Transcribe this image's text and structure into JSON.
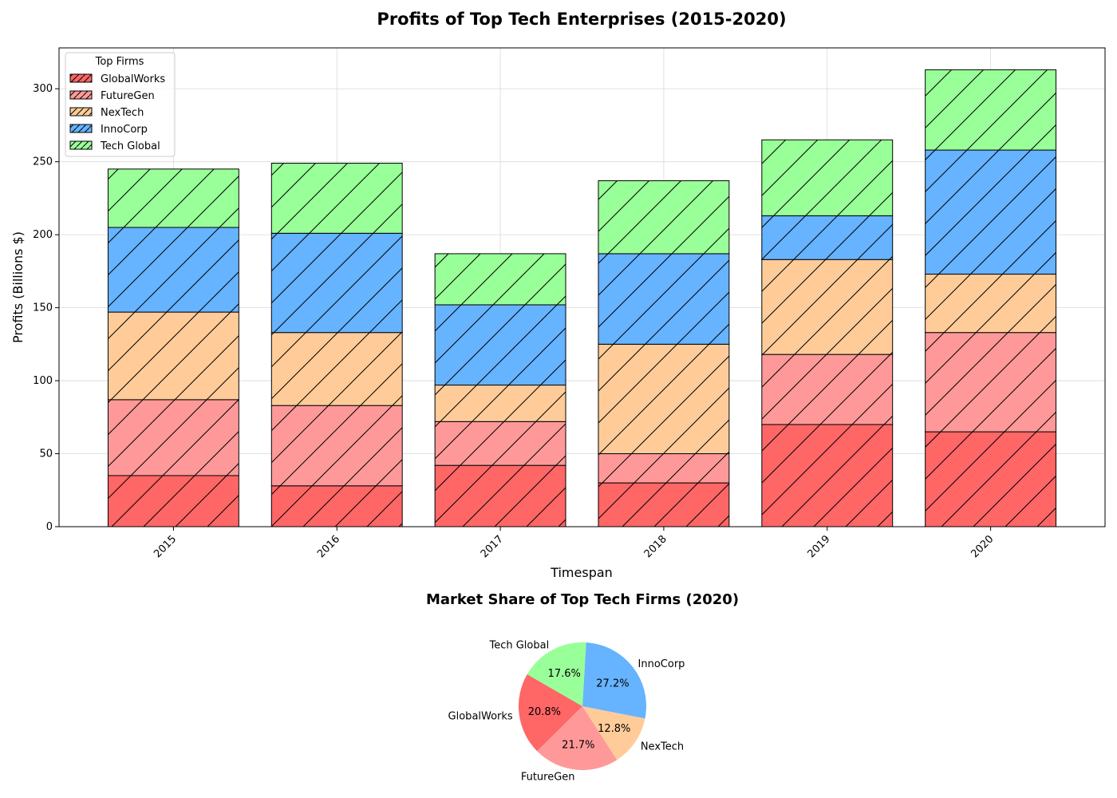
{
  "chart_data": [
    {
      "type": "bar",
      "stacked": true,
      "title": "Profits of Top Tech Enterprises (2015-2020)",
      "xlabel": "Timespan",
      "ylabel": "Profits (Billions $)",
      "categories": [
        "2015",
        "2016",
        "2017",
        "2018",
        "2019",
        "2020"
      ],
      "ylim": [
        0,
        328
      ],
      "yticks": [
        "0",
        "50",
        "100",
        "150",
        "200",
        "250",
        "300"
      ],
      "grid": true,
      "legend": {
        "title": "Top Firms",
        "position": "top-left"
      },
      "hatch": "/",
      "series": [
        {
          "name": "GlobalWorks",
          "color": "#ff6666",
          "values": [
            35,
            28,
            42,
            30,
            70,
            65
          ]
        },
        {
          "name": "FutureGen",
          "color": "#ff9999",
          "values": [
            52,
            55,
            30,
            20,
            48,
            68
          ]
        },
        {
          "name": "NexTech",
          "color": "#ffcc99",
          "values": [
            60,
            50,
            25,
            75,
            65,
            40
          ]
        },
        {
          "name": "InnoCorp",
          "color": "#66b3ff",
          "values": [
            58,
            68,
            55,
            62,
            30,
            85
          ]
        },
        {
          "name": "Tech Global",
          "color": "#99ff99",
          "values": [
            40,
            48,
            35,
            50,
            52,
            55
          ]
        }
      ]
    },
    {
      "type": "pie",
      "title": "Market Share of Top Tech Firms (2020)",
      "start_angle_deg": 150,
      "slices": [
        {
          "label": "GlobalWorks",
          "value": 20.8,
          "pct_label": "20.8%",
          "color": "#ff6666"
        },
        {
          "label": "FutureGen",
          "value": 21.7,
          "pct_label": "21.7%",
          "color": "#ff9999"
        },
        {
          "label": "NexTech",
          "value": 12.8,
          "pct_label": "12.8%",
          "color": "#ffcc99"
        },
        {
          "label": "InnoCorp",
          "value": 27.2,
          "pct_label": "27.2%",
          "color": "#66b3ff"
        },
        {
          "label": "Tech Global",
          "value": 17.6,
          "pct_label": "17.6%",
          "color": "#99ff99"
        }
      ]
    }
  ]
}
